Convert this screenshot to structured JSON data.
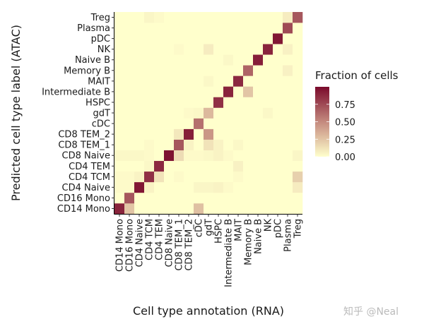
{
  "chart_data": {
    "type": "heatmap",
    "xlabel": "Cell type annotation (RNA)",
    "ylabel": "Predicted cell type label (ATAC)",
    "x_categories": [
      "CD14 Mono",
      "CD16 Mono",
      "CD4 Naive",
      "CD4 TCM",
      "CD4 TEM",
      "CD8 Naive",
      "CD8 TEM_1",
      "CD8 TEM_2",
      "cDC",
      "gdT",
      "HSPC",
      "Intermediate B",
      "MAIT",
      "Memory B",
      "Naive B",
      "NK",
      "pDC",
      "Plasma",
      "Treg"
    ],
    "y_categories": [
      "CD14 Mono",
      "CD16 Mono",
      "CD4 Naive",
      "CD4 TCM",
      "CD4 TEM",
      "CD8 Naive",
      "CD8 TEM_1",
      "CD8 TEM_2",
      "cDC",
      "gdT",
      "HSPC",
      "Intermediate B",
      "MAIT",
      "Memory B",
      "Naive B",
      "NK",
      "pDC",
      "Plasma",
      "Treg"
    ],
    "values": [
      [
        0.9,
        0.25,
        0,
        0,
        0,
        0,
        0,
        0,
        0.27,
        0,
        0,
        0,
        0,
        0,
        0,
        0,
        0,
        0,
        0
      ],
      [
        0,
        0.7,
        0,
        0,
        0,
        0,
        0,
        0,
        0,
        0,
        0,
        0,
        0,
        0,
        0,
        0,
        0,
        0,
        0
      ],
      [
        0.02,
        0.02,
        0.95,
        0.05,
        0,
        0,
        0,
        0,
        0.04,
        0.04,
        0.05,
        0.02,
        0,
        0,
        0,
        0,
        0,
        0,
        0.08
      ],
      [
        0.02,
        0.02,
        0.05,
        0.85,
        0.12,
        0,
        0.02,
        0,
        0,
        0,
        0,
        0,
        0.02,
        0,
        0,
        0,
        0,
        0,
        0.2
      ],
      [
        0,
        0,
        0,
        0.03,
        0.88,
        0,
        0,
        0,
        0,
        0,
        0,
        0,
        0.06,
        0,
        0,
        0,
        0,
        0,
        0
      ],
      [
        0.03,
        0.03,
        0.03,
        0.02,
        0,
        0.97,
        0.15,
        0.02,
        0.02,
        0.03,
        0.05,
        0.02,
        0,
        0,
        0,
        0,
        0,
        0,
        0.04
      ],
      [
        0,
        0,
        0,
        0.02,
        0,
        0,
        0.7,
        0.05,
        0,
        0.12,
        0.05,
        0,
        0.03,
        0,
        0,
        0,
        0,
        0,
        0
      ],
      [
        0,
        0,
        0,
        0,
        0,
        0,
        0.1,
        0.92,
        0,
        0.45,
        0,
        0,
        0,
        0,
        0,
        0,
        0,
        0,
        0
      ],
      [
        0,
        0,
        0,
        0,
        0,
        0,
        0,
        0,
        0.6,
        0,
        0,
        0,
        0,
        0,
        0,
        0,
        0,
        0,
        0
      ],
      [
        0,
        0,
        0,
        0,
        0,
        0,
        0,
        0.02,
        0.03,
        0.3,
        0,
        0,
        0,
        0,
        0,
        0.03,
        0,
        0,
        0
      ],
      [
        0,
        0,
        0,
        0,
        0,
        0,
        0,
        0,
        0,
        0,
        0.85,
        0,
        0,
        0,
        0,
        0,
        0,
        0,
        0
      ],
      [
        0,
        0,
        0,
        0,
        0,
        0,
        0,
        0,
        0,
        0,
        0,
        0.9,
        0,
        0.25,
        0,
        0,
        0,
        0,
        0
      ],
      [
        0,
        0,
        0,
        0,
        0,
        0,
        0,
        0,
        0,
        0.03,
        0,
        0,
        0.88,
        0,
        0,
        0,
        0,
        0,
        0
      ],
      [
        0,
        0,
        0,
        0,
        0,
        0,
        0,
        0,
        0,
        0,
        0,
        0,
        0,
        0.65,
        0,
        0,
        0,
        0.06,
        0
      ],
      [
        0,
        0,
        0,
        0,
        0,
        0,
        0,
        0,
        0,
        0,
        0,
        0.03,
        0,
        0,
        0.92,
        0,
        0,
        0,
        0
      ],
      [
        0,
        0,
        0,
        0,
        0,
        0,
        0.02,
        0,
        0,
        0.08,
        0,
        0,
        0,
        0,
        0,
        0.9,
        0,
        0.06,
        0
      ],
      [
        0,
        0,
        0,
        0,
        0,
        0,
        0,
        0,
        0,
        0,
        0,
        0,
        0,
        0,
        0,
        0,
        0.95,
        0,
        0
      ],
      [
        0,
        0,
        0,
        0,
        0,
        0,
        0,
        0,
        0,
        0,
        0,
        0,
        0,
        0,
        0,
        0,
        0,
        0.75,
        0
      ],
      [
        0,
        0,
        0,
        0.04,
        0.02,
        0,
        0,
        0,
        0,
        0,
        0,
        0,
        0,
        0,
        0,
        0,
        0,
        0.08,
        0.7
      ]
    ],
    "legend": {
      "title": "Fraction of cells",
      "ticks": [
        "0.00",
        "0.25",
        "0.50",
        "0.75"
      ],
      "placement": "right"
    },
    "color_range": [
      0,
      1
    ],
    "colors": {
      "low": "#FFFFCC",
      "mid": "#C48A7E",
      "high": "#7A0A2C"
    },
    "grid": false
  },
  "watermark": "知乎 @Neal"
}
